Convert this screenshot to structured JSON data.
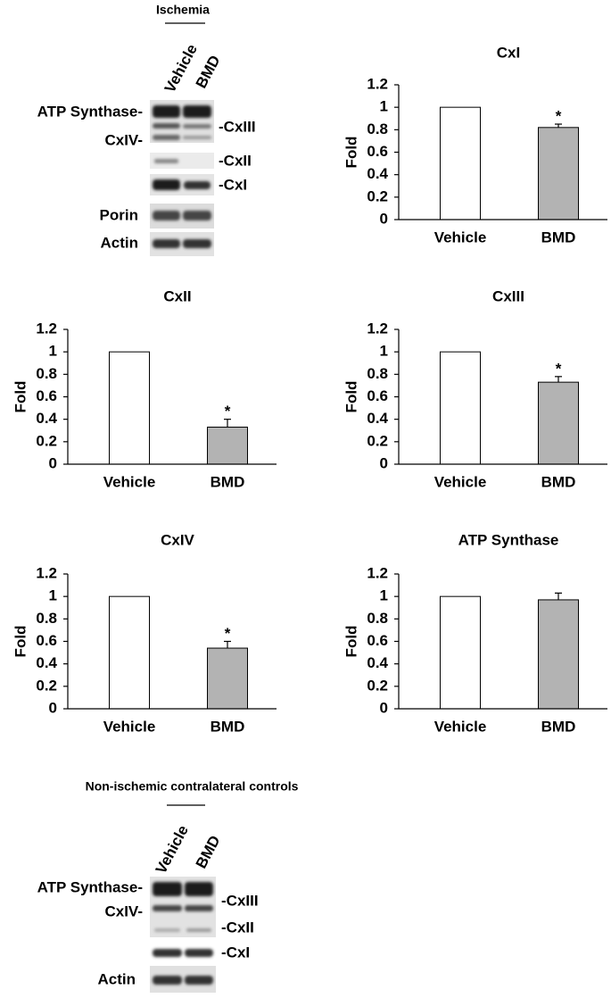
{
  "chart_data": [
    {
      "type": "bar",
      "title": "CxI",
      "ylabel": "Fold",
      "categories": [
        "Vehicle",
        "BMD"
      ],
      "values": [
        1,
        0.82
      ],
      "errors": [
        null,
        0.03
      ],
      "colors": [
        "#ffffff",
        "#b3b3b3"
      ],
      "ylim": [
        0,
        1.2
      ],
      "yticks": [
        0,
        0.2,
        0.4,
        0.6,
        0.8,
        1,
        1.2
      ],
      "annotations": [
        {
          "text": "*",
          "x": "BMD"
        }
      ]
    },
    {
      "type": "bar",
      "title": "CxII",
      "ylabel": "Fold",
      "categories": [
        "Vehicle",
        "BMD"
      ],
      "values": [
        1,
        0.33
      ],
      "errors": [
        null,
        0.07
      ],
      "colors": [
        "#ffffff",
        "#b3b3b3"
      ],
      "ylim": [
        0,
        1.2
      ],
      "yticks": [
        0,
        0.2,
        0.4,
        0.6,
        0.8,
        1,
        1.2
      ],
      "annotations": [
        {
          "text": "*",
          "x": "BMD"
        }
      ]
    },
    {
      "type": "bar",
      "title": "CxIII",
      "ylabel": "Fold",
      "categories": [
        "Vehicle",
        "BMD"
      ],
      "values": [
        1,
        0.73
      ],
      "errors": [
        null,
        0.05
      ],
      "colors": [
        "#ffffff",
        "#b3b3b3"
      ],
      "ylim": [
        0,
        1.2
      ],
      "yticks": [
        0,
        0.2,
        0.4,
        0.6,
        0.8,
        1,
        1.2
      ],
      "annotations": [
        {
          "text": "*",
          "x": "BMD"
        }
      ]
    },
    {
      "type": "bar",
      "title": "CxIV",
      "ylabel": "Fold",
      "categories": [
        "Vehicle",
        "BMD"
      ],
      "values": [
        1,
        0.54
      ],
      "errors": [
        null,
        0.06
      ],
      "colors": [
        "#ffffff",
        "#b3b3b3"
      ],
      "ylim": [
        0,
        1.2
      ],
      "yticks": [
        0,
        0.2,
        0.4,
        0.6,
        0.8,
        1,
        1.2
      ],
      "annotations": [
        {
          "text": "*",
          "x": "BMD"
        }
      ]
    },
    {
      "type": "bar",
      "title": "ATP Synthase",
      "ylabel": "Fold",
      "categories": [
        "Vehicle",
        "BMD"
      ],
      "values": [
        1,
        0.97
      ],
      "errors": [
        null,
        0.06
      ],
      "colors": [
        "#ffffff",
        "#b3b3b3"
      ],
      "ylim": [
        0,
        1.2
      ],
      "yticks": [
        0,
        0.2,
        0.4,
        0.6,
        0.8,
        1,
        1.2
      ],
      "annotations": []
    }
  ],
  "blots": [
    {
      "title": "Ischemia",
      "lanes": [
        "Vehicle",
        "BMD"
      ],
      "left_labels": [
        "ATP Synthase-",
        "CxIV-",
        "Porin",
        "Actin"
      ],
      "right_labels": [
        "-CxIII",
        "-CxII",
        "-CxI"
      ]
    },
    {
      "title": "Non-ischemic contralateral controls",
      "lanes": [
        "Vehicle",
        "BMD"
      ],
      "left_labels": [
        "ATP Synthase-",
        "CxIV-",
        "Actin"
      ],
      "right_labels": [
        "-CxIII",
        "-CxII",
        "-CxI"
      ]
    }
  ]
}
